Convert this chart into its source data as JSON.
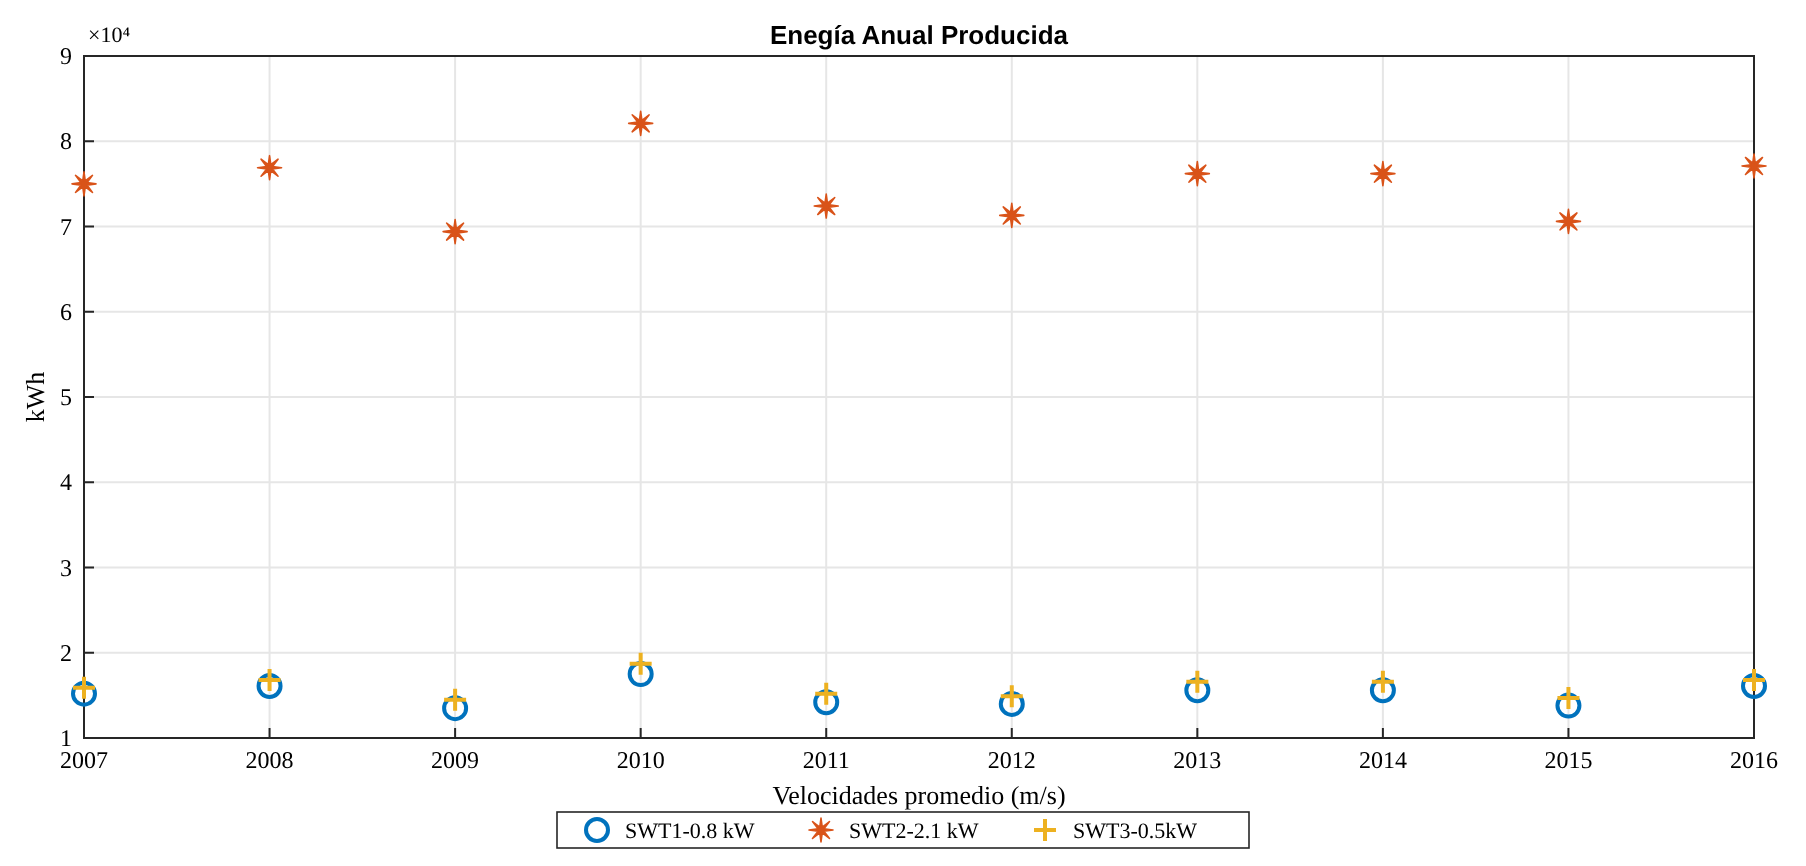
{
  "chart_data": {
    "type": "scatter",
    "title": "Enegía Anual Producida",
    "xlabel": "Velocidades promedio (m/s)",
    "ylabel": "kWh",
    "x": [
      2007,
      2008,
      2009,
      2010,
      2011,
      2012,
      2013,
      2014,
      2015,
      2016
    ],
    "xlim": [
      2007,
      2016
    ],
    "xticks": [
      2007,
      2008,
      2009,
      2010,
      2011,
      2012,
      2013,
      2014,
      2015,
      2016
    ],
    "ylim": [
      1,
      9
    ],
    "yticks": [
      1,
      2,
      3,
      4,
      5,
      6,
      7,
      8,
      9
    ],
    "annotations": [
      "×10⁴"
    ],
    "grid": true,
    "legend": "bottom",
    "series": [
      {
        "name": "SWT1-0.8 kW",
        "color": "#0072bd",
        "marker": "circle",
        "values": [
          1.52,
          1.61,
          1.35,
          1.75,
          1.42,
          1.4,
          1.56,
          1.56,
          1.38,
          1.61
        ]
      },
      {
        "name": "SWT2-2.1 kW",
        "color": "#d95319",
        "marker": "star",
        "values": [
          7.5,
          7.69,
          6.94,
          8.21,
          7.24,
          7.13,
          7.62,
          7.62,
          7.06,
          7.71
        ]
      },
      {
        "name": "SWT3-0.5kW",
        "color": "#edb120",
        "marker": "cross",
        "values": [
          1.59,
          1.68,
          1.45,
          1.87,
          1.52,
          1.49,
          1.66,
          1.66,
          1.47,
          1.68
        ]
      }
    ]
  }
}
